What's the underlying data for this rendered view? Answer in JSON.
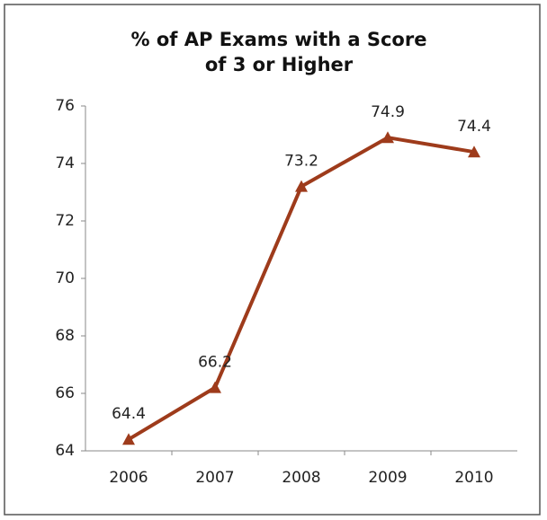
{
  "chart_data": {
    "type": "line",
    "title": [
      "% of AP Exams  with a Score",
      "of 3 or Higher"
    ],
    "categories": [
      "2006",
      "2007",
      "2008",
      "2009",
      "2010"
    ],
    "series": [
      {
        "name": "% of AP Exams with a Score of 3 or Higher",
        "color": "#9e3b1b",
        "values": [
          64.4,
          66.2,
          73.2,
          74.9,
          74.4
        ]
      }
    ],
    "ylim": [
      64,
      76
    ],
    "yticks": [
      64,
      66,
      68,
      70,
      72,
      74,
      76
    ],
    "grid": false,
    "legend": false
  }
}
